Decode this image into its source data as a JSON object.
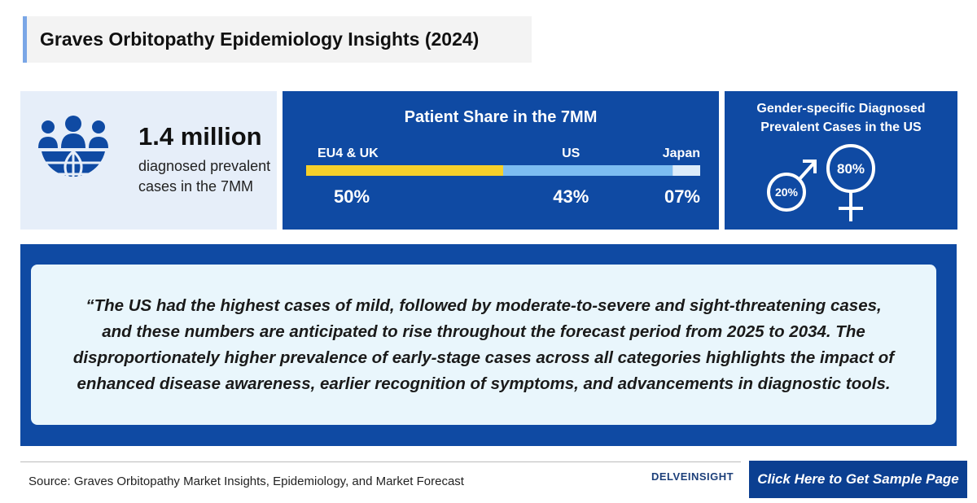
{
  "header": {
    "title": "Graves Orbitopathy Epidemiology Insights (2024)"
  },
  "stat": {
    "value": "1.4 million",
    "label": "diagnosed prevalent cases in the 7MM"
  },
  "patient_share": {
    "title": "Patient Share in the 7MM",
    "categories": [
      "EU4 & UK",
      "US",
      "Japan"
    ],
    "values": [
      50,
      43,
      7
    ],
    "value_labels": [
      "50%",
      "43%",
      "07%"
    ],
    "colors": [
      "#f6d02a",
      "#7cbdf2",
      "#dcecfa"
    ]
  },
  "gender": {
    "title": "Gender-specific Diagnosed Prevalent Cases in the US",
    "values": [
      20,
      80
    ],
    "value_labels": [
      "20%",
      "80%"
    ]
  },
  "quote": "“The US had the highest cases of mild, followed by moderate-to-severe and sight-threatening cases, and these numbers are anticipated to rise throughout the forecast period from 2025 to 2034. The disproportionately higher prevalence of early-stage cases across all categories highlights the impact of enhanced disease awareness, earlier recognition of symptoms, and advancements in diagnostic tools.",
  "footer": {
    "source": "Source: Graves Orbitopathy Market Insights, Epidemiology, and Market Forecast",
    "logo": "DELVEINSIGHT",
    "button": "Click Here to Get Sample Page"
  }
}
